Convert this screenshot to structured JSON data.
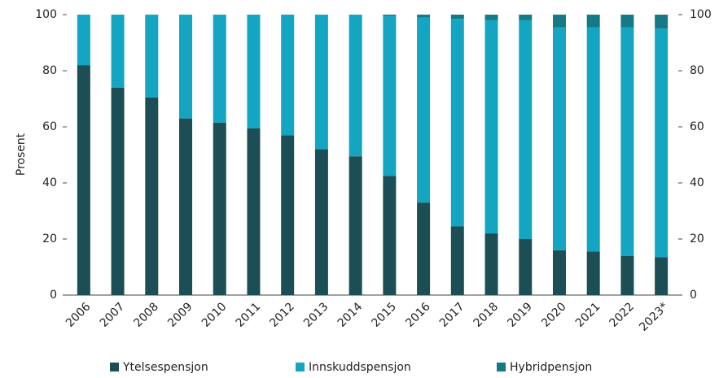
{
  "chart_data": {
    "type": "stacked_bar",
    "y_label": "Prosent",
    "categories": [
      "2006",
      "2007",
      "2008",
      "2009",
      "2010",
      "2011",
      "2012",
      "2013",
      "2014",
      "2015",
      "2016",
      "2017",
      "2018",
      "2019",
      "2020",
      "2021",
      "2022",
      "2023*"
    ],
    "series": [
      {
        "name": "Ytelsespensjon",
        "color": "#1b4f55",
        "values": [
          82,
          74,
          70.5,
          63,
          61.5,
          59.5,
          57,
          52,
          49.5,
          42.5,
          33,
          24.5,
          22,
          20,
          16,
          15.5,
          14,
          13.5
        ]
      },
      {
        "name": "Innskuddspensjon",
        "color": "#13a5c2",
        "values": [
          18,
          26,
          29.5,
          37,
          38.5,
          40.5,
          43,
          48,
          50.5,
          57,
          66,
          74,
          76,
          78,
          79.5,
          80,
          81.5,
          81.5
        ]
      },
      {
        "name": "Hybridpensjon",
        "color": "#167a86",
        "values": [
          0,
          0,
          0,
          0,
          0,
          0,
          0,
          0,
          0,
          0.5,
          1,
          1.5,
          2,
          2,
          4.5,
          4.5,
          4.5,
          5
        ]
      }
    ],
    "ylim": [
      0,
      100
    ],
    "yticks": [
      0,
      20,
      40,
      60,
      80,
      100
    ],
    "y2lim": [
      0,
      100
    ],
    "y2ticks": [
      0,
      20,
      40,
      60,
      80,
      100
    ]
  }
}
